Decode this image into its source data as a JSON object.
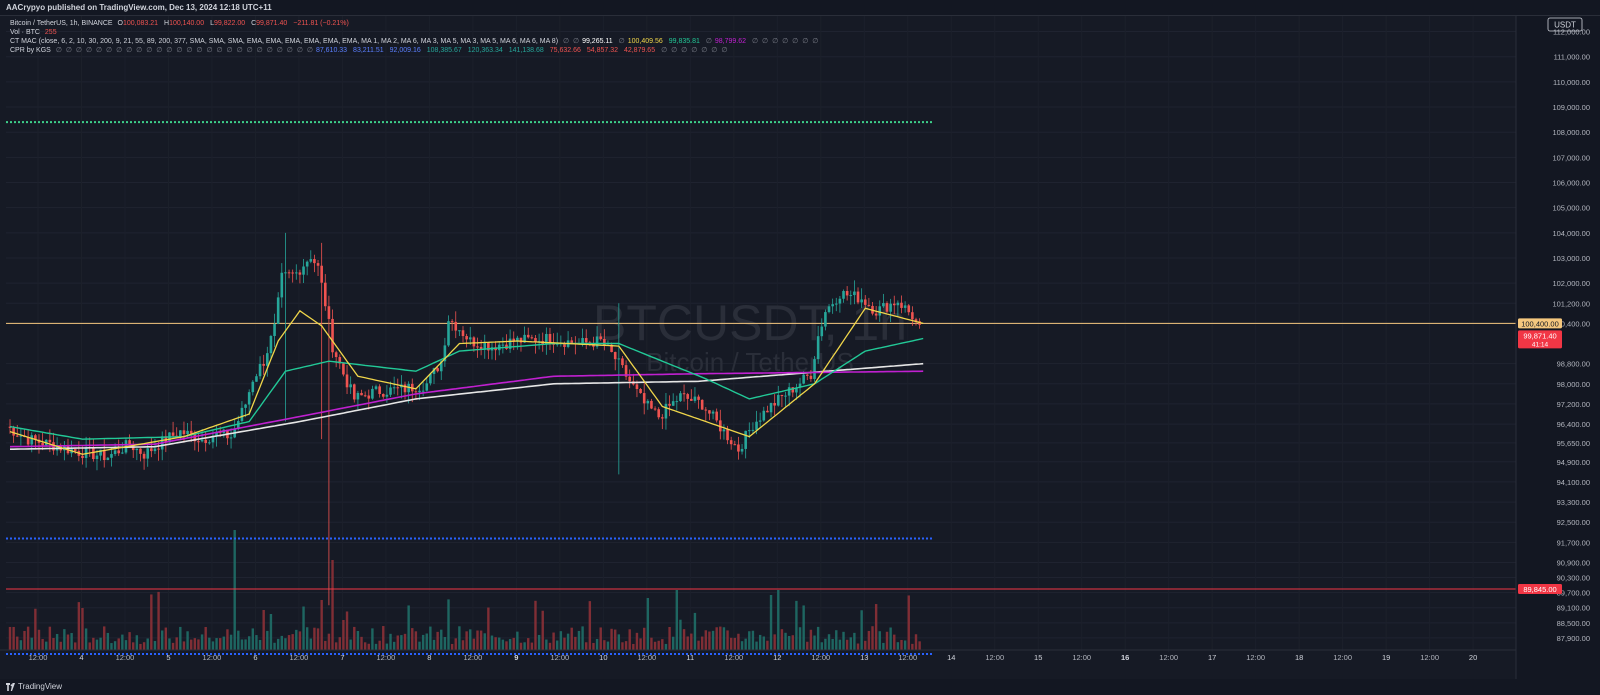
{
  "header": {
    "published": "AACrypyo published on TradingView.com, Dec 13, 2024 12:18 UTC+11"
  },
  "legend": {
    "line1": {
      "symbol": "Bitcoin / TetherUS, 1h, BINANCE",
      "open_label": "O",
      "open": "100,083.21",
      "high_label": "H",
      "high": "100,140.00",
      "low_label": "L",
      "low": "99,822.00",
      "close_label": "C",
      "close": "99,871.40",
      "change": "−211.81 (−0.21%)"
    },
    "line2": {
      "label": "Vol · BTC",
      "value": "255"
    },
    "line3": {
      "label": "CT MAC (close, 6, 2, 10, 30, 200, 9, 21, 55, 89, 200, 377, SMA, SMA, SMA, EMA, EMA, EMA, EMA, EMA, EMA, MA 1, MA 2, MA 6, MA 3, MA 5, MA 3, MA 5, MA 6, MA 6, MA 8)",
      "pre_dots": "∅ ∅",
      "values": [
        "99,265.11",
        "∅",
        "100,409.56",
        "99,835.81",
        "∅",
        "98,799.62"
      ],
      "post_dots": "∅ ∅ ∅ ∅ ∅ ∅ ∅"
    },
    "line4": {
      "label": "CPR by KGS",
      "pre_dots": "∅ ∅ ∅ ∅ ∅ ∅ ∅ ∅ ∅ ∅ ∅ ∅ ∅ ∅ ∅ ∅ ∅ ∅ ∅ ∅ ∅ ∅ ∅ ∅ ∅ ∅",
      "values": [
        "87,610.33",
        "83,211.51",
        "92,009.16",
        "108,385.67",
        "120,363.34",
        "141,138.68",
        "75,632.66",
        "54,857.32",
        "42,879.65"
      ],
      "post_dots": "∅ ∅ ∅ ∅ ∅ ∅ ∅"
    }
  },
  "watermark": {
    "symbol": "BTCUSDT, 1h",
    "name": "Bitcoin / TetherUS"
  },
  "colors": {
    "up": "#26a69a",
    "down": "#ef5350",
    "ma_fast": "#f0d64a",
    "ma_mid": "#22c997",
    "ma_200": "#e6e6e6",
    "ma_pink": "#c020d0",
    "cpr_top": "#3ed08a",
    "cpr_low": "#2962ff",
    "price_line": "#f5c77e",
    "level_red": "#f23645",
    "bg": "#161a25"
  },
  "chart_data": {
    "type": "candlestick",
    "currency": "USDT",
    "ylim": [
      87500,
      112300
    ],
    "y_ticks": [
      "112,000.00",
      "111,000.00",
      "110,000.00",
      "109,000.00",
      "108,000.00",
      "107,000.00",
      "106,000.00",
      "105,000.00",
      "104,000.00",
      "103,000.00",
      "102,000.00",
      "101,200.00",
      "100,400.00",
      "98,800.00",
      "98,000.00",
      "97,200.00",
      "96,400.00",
      "95,650.00",
      "94,900.00",
      "94,100.00",
      "93,300.00",
      "92,500.00",
      "91,700.00",
      "90,900.00",
      "90,300.00",
      "89,700.00",
      "89,100.00",
      "88,500.00",
      "87,900.00"
    ],
    "x_ticks": [
      "12:00",
      "4",
      "12:00",
      "5",
      "12:00",
      "6",
      "12:00",
      "7",
      "12:00",
      "8",
      "12:00",
      "9",
      "12:00",
      "10",
      "12:00",
      "11",
      "12:00",
      "12",
      "12:00",
      "13",
      "12:00",
      "14",
      "12:00",
      "15",
      "12:00",
      "16",
      "12:00",
      "17",
      "12:00",
      "18",
      "12:00",
      "19",
      "12:00",
      "20"
    ],
    "x_ticks_bold": [
      "9",
      "16"
    ],
    "candles_per_day": 24,
    "bars_shown": 252,
    "anchor_points": [
      [
        0,
        96300
      ],
      [
        6,
        95800
      ],
      [
        12,
        95600
      ],
      [
        20,
        95300
      ],
      [
        28,
        95100
      ],
      [
        34,
        95600
      ],
      [
        38,
        95200
      ],
      [
        44,
        95800
      ],
      [
        48,
        96100
      ],
      [
        54,
        95800
      ],
      [
        58,
        96000
      ],
      [
        62,
        95900
      ],
      [
        66,
        97200
      ],
      [
        68,
        98200
      ],
      [
        71,
        98900
      ],
      [
        74,
        100200
      ],
      [
        76,
        102200
      ],
      [
        80,
        102400
      ],
      [
        84,
        103100
      ],
      [
        86,
        102600
      ],
      [
        88,
        101200
      ],
      [
        90,
        99500
      ],
      [
        93,
        98400
      ],
      [
        96,
        97400
      ],
      [
        102,
        97700
      ],
      [
        110,
        97800
      ],
      [
        116,
        98000
      ],
      [
        120,
        98900
      ],
      [
        122,
        100600
      ],
      [
        125,
        100200
      ],
      [
        128,
        99700
      ],
      [
        134,
        99500
      ],
      [
        140,
        99700
      ],
      [
        150,
        99800
      ],
      [
        158,
        99600
      ],
      [
        164,
        99700
      ],
      [
        168,
        99000
      ],
      [
        172,
        98100
      ],
      [
        176,
        97200
      ],
      [
        180,
        96700
      ],
      [
        186,
        97500
      ],
      [
        192,
        97200
      ],
      [
        198,
        96100
      ],
      [
        202,
        95400
      ],
      [
        206,
        96400
      ],
      [
        210,
        97000
      ],
      [
        216,
        97700
      ],
      [
        222,
        98400
      ],
      [
        224,
        99900
      ],
      [
        226,
        100900
      ],
      [
        230,
        101600
      ],
      [
        236,
        101400
      ],
      [
        240,
        100900
      ],
      [
        246,
        101300
      ],
      [
        250,
        100700
      ],
      [
        252,
        100150
      ]
    ],
    "ma_fast_points": [
      [
        0,
        96100
      ],
      [
        20,
        95200
      ],
      [
        48,
        95900
      ],
      [
        66,
        96800
      ],
      [
        74,
        99700
      ],
      [
        80,
        100900
      ],
      [
        86,
        100300
      ],
      [
        96,
        98300
      ],
      [
        112,
        97800
      ],
      [
        124,
        99600
      ],
      [
        140,
        99700
      ],
      [
        168,
        99500
      ],
      [
        180,
        97100
      ],
      [
        204,
        95900
      ],
      [
        222,
        98000
      ],
      [
        236,
        101000
      ],
      [
        244,
        100700
      ],
      [
        252,
        100400
      ]
    ],
    "ma_mid_points": [
      [
        0,
        96300
      ],
      [
        20,
        95800
      ],
      [
        48,
        95900
      ],
      [
        66,
        96500
      ],
      [
        76,
        98500
      ],
      [
        88,
        98900
      ],
      [
        112,
        98500
      ],
      [
        124,
        99300
      ],
      [
        150,
        99600
      ],
      [
        168,
        99600
      ],
      [
        192,
        98200
      ],
      [
        204,
        97400
      ],
      [
        222,
        98000
      ],
      [
        236,
        99300
      ],
      [
        252,
        99800
      ]
    ],
    "ma_200_points": [
      [
        0,
        95400
      ],
      [
        40,
        95500
      ],
      [
        80,
        96500
      ],
      [
        112,
        97400
      ],
      [
        150,
        98000
      ],
      [
        190,
        98100
      ],
      [
        252,
        98800
      ]
    ],
    "ma_pink_points": [
      [
        0,
        95500
      ],
      [
        40,
        95600
      ],
      [
        80,
        96700
      ],
      [
        112,
        97600
      ],
      [
        150,
        98300
      ],
      [
        190,
        98400
      ],
      [
        252,
        98500
      ]
    ],
    "cpr_top": 108400,
    "cpr_low": 91850,
    "level_red": 89845,
    "current_price_level": 100400,
    "labels": {
      "price_level": "100,400.00",
      "close_price": "99,871.40",
      "close_countdown": "41:14",
      "red_level": "89,845.00"
    }
  },
  "footer": {
    "brand": "TradingView"
  }
}
